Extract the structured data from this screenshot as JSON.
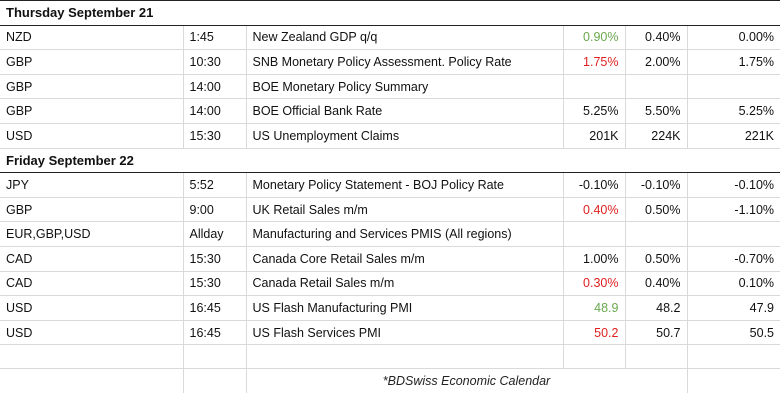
{
  "days": [
    {
      "title": "Thursday September 21",
      "events": [
        {
          "currency": "NZD",
          "time": "1:45",
          "event": "New Zealand GDP q/q",
          "actual": "0.90%",
          "forecast": "0.40%",
          "previous": "0.00%",
          "actual_color": "green"
        },
        {
          "currency": "GBP",
          "time": "10:30",
          "event": "SNB Monetary Policy Assessment. Policy Rate",
          "actual": "1.75%",
          "forecast": "2.00%",
          "previous": "1.75%",
          "actual_color": "red"
        },
        {
          "currency": "GBP",
          "time": "14:00",
          "event": "BOE Monetary Policy Summary",
          "actual": "",
          "forecast": "",
          "previous": "",
          "actual_color": "none"
        },
        {
          "currency": "GBP",
          "time": "14:00",
          "event": "BOE Official Bank Rate",
          "actual": "5.25%",
          "forecast": "5.50%",
          "previous": "5.25%",
          "actual_color": "none"
        },
        {
          "currency": "USD",
          "time": "15:30",
          "event": "US Unemployment Claims",
          "actual": "201K",
          "forecast": "224K",
          "previous": "221K",
          "actual_color": "none"
        }
      ]
    },
    {
      "title": "Friday September 22",
      "events": [
        {
          "currency": "JPY",
          "time": "5:52",
          "event": "Monetary Policy Statement - BOJ Policy Rate",
          "actual": "-0.10%",
          "forecast": "-0.10%",
          "previous": "-0.10%",
          "actual_color": "none"
        },
        {
          "currency": "GBP",
          "time": "9:00",
          "event": "UK Retail Sales m/m",
          "actual": "0.40%",
          "forecast": "0.50%",
          "previous": "-1.10%",
          "actual_color": "red"
        },
        {
          "currency": "EUR,GBP,USD",
          "time": "Allday",
          "event": "Manufacturing and Services PMIS (All regions)",
          "actual": "",
          "forecast": "",
          "previous": "",
          "actual_color": "none"
        },
        {
          "currency": "CAD",
          "time": "15:30",
          "event": "Canada Core Retail Sales m/m",
          "actual": "1.00%",
          "forecast": "0.50%",
          "previous": "-0.70%",
          "actual_color": "none"
        },
        {
          "currency": "CAD",
          "time": "15:30",
          "event": "Canada Retail Sales m/m",
          "actual": "0.30%",
          "forecast": "0.40%",
          "previous": "0.10%",
          "actual_color": "red"
        },
        {
          "currency": "USD",
          "time": "16:45",
          "event": "US Flash Manufacturing PMI",
          "actual": "48.9",
          "forecast": "48.2",
          "previous": "47.9",
          "actual_color": "green"
        },
        {
          "currency": "USD",
          "time": "16:45",
          "event": "US Flash Services PMI",
          "actual": "50.2",
          "forecast": "50.7",
          "previous": "50.5",
          "actual_color": "red"
        }
      ]
    }
  ],
  "footer": "*BDSwiss Economic Calendar",
  "colors": {
    "green": "#6aa84f",
    "red": "#e02020",
    "border": "#222222",
    "grid": "#d9d9d9"
  }
}
